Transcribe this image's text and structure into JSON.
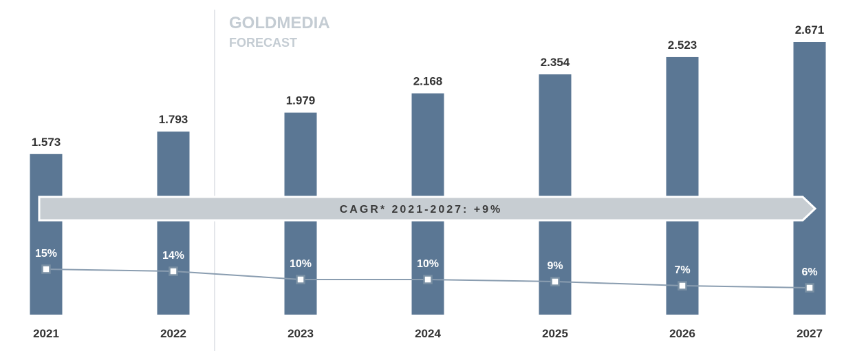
{
  "forecast_label": {
    "line1": "GOLDMEDIA",
    "line2": "FORECAST"
  },
  "cagr_label": "CAGR* 2021-2027: +9%",
  "colors": {
    "bar": "#5b7794",
    "arrow": "#c7cdd2",
    "growth_line": "#8a9db0",
    "forecast_text": "#c4ccd3"
  },
  "chart_data": {
    "type": "bar",
    "categories": [
      "2021",
      "2022",
      "2023",
      "2024",
      "2025",
      "2026",
      "2027"
    ],
    "values": [
      1.573,
      1.793,
      1.979,
      2.168,
      2.354,
      2.523,
      2.671
    ],
    "value_labels": [
      "1.573",
      "1.793",
      "1.979",
      "2.168",
      "2.354",
      "2.523",
      "2.671"
    ],
    "forecast_from": "2023",
    "growth": {
      "type": "line",
      "values": [
        15,
        14,
        10,
        10,
        9,
        7,
        6
      ],
      "labels": [
        "15%",
        "14%",
        "10%",
        "10%",
        "9%",
        "7%",
        "6%"
      ]
    },
    "ylim": [
      0,
      2.671
    ],
    "grid": false
  }
}
